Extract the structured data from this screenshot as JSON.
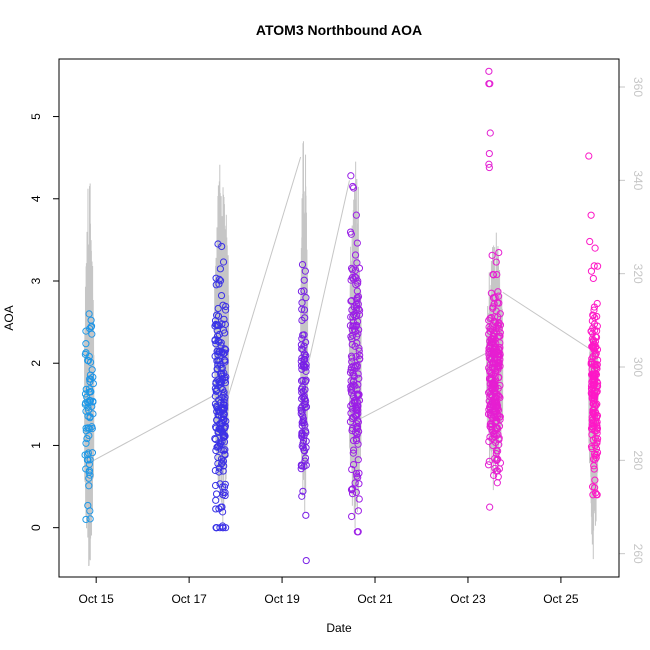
{
  "chart_data": {
    "type": "scatter",
    "title": "ATOM3 Northbound AOA",
    "xlabel": "Date",
    "ylabel": "AOA",
    "x_ticks": [
      {
        "label": "Oct 15",
        "day": 15
      },
      {
        "label": "Oct 17",
        "day": 17
      },
      {
        "label": "Oct 19",
        "day": 19
      },
      {
        "label": "Oct 21",
        "day": 21
      },
      {
        "label": "Oct 23",
        "day": 23
      },
      {
        "label": "Oct 25",
        "day": 25
      }
    ],
    "xlim_days": [
      14.2,
      26.25
    ],
    "y_ticks": [
      0,
      1,
      2,
      3,
      4,
      5
    ],
    "ylim": [
      -0.6,
      5.7
    ],
    "y2_ticks": [
      260,
      280,
      300,
      320,
      340,
      360
    ],
    "y2lim": [
      255,
      366
    ],
    "grid": false,
    "colors": {
      "point_gradient": [
        "#1fa2e6",
        "#1f3de6",
        "#6b1fe6",
        "#b41fe6",
        "#e61fd1",
        "#ff18c6"
      ],
      "secondary_line": "#c6c6c6",
      "axis": "#000000",
      "secondary_axis": "#c6c6c6"
    },
    "secondary_series": {
      "summary": "grey line (right axis) showing high-frequency oscillation during each observation window, joined by straight segments between windows",
      "segments": [
        {
          "day_start": 14.75,
          "day_end": 14.95,
          "min": 257,
          "mid": 290,
          "max": 341
        },
        {
          "day_start": 17.55,
          "day_end": 17.85,
          "min": 265,
          "mid": 303,
          "max": 350
        },
        {
          "day_start": 19.4,
          "day_end": 19.55,
          "min": 268,
          "mid": 302,
          "max": 352
        },
        {
          "day_start": 20.45,
          "day_end": 20.7,
          "min": 265,
          "mid": 293,
          "max": 350
        },
        {
          "day_start": 23.4,
          "day_end": 23.75,
          "min": 272,
          "mid": 300,
          "max": 330
        },
        {
          "day_start": 25.6,
          "day_end": 25.8,
          "min": 258,
          "mid": 295,
          "max": 310
        }
      ],
      "connectors": [
        {
          "from_day": 14.95,
          "from": 280,
          "to_day": 17.55,
          "to": 294
        },
        {
          "from_day": 17.85,
          "from": 294,
          "to_day": 19.4,
          "to": 345
        },
        {
          "from_day": 19.55,
          "from": 300,
          "to_day": 20.45,
          "to": 340
        },
        {
          "from_day": 20.7,
          "from": 289,
          "to_day": 23.4,
          "to": 303
        },
        {
          "from_day": 23.75,
          "from": 316,
          "to_day": 25.6,
          "to": 304
        }
      ]
    },
    "clusters": [
      {
        "center_day": 14.85,
        "spread": 0.09,
        "n": 70,
        "mean": 1.45,
        "sd": 0.55,
        "min": 0.1,
        "max": 2.6,
        "extra": [
          {
            "day": 14.78,
            "aoa": 0.1
          },
          {
            "day": 14.82,
            "aoa": 0.27
          },
          {
            "day": 14.9,
            "aoa": 2.45
          }
        ]
      },
      {
        "center_day": 17.67,
        "spread": 0.12,
        "n": 200,
        "mean": 1.55,
        "sd": 0.65,
        "min": 0.0,
        "max": 3.45,
        "extra": [
          {
            "day": 17.7,
            "aoa": 3.42
          },
          {
            "day": 17.72,
            "aoa": 0.02
          },
          {
            "day": 17.65,
            "aoa": 3.02
          }
        ]
      },
      {
        "center_day": 19.47,
        "spread": 0.06,
        "n": 90,
        "mean": 1.7,
        "sd": 0.65,
        "min": 0.15,
        "max": 3.2,
        "extra": [
          {
            "day": 19.52,
            "aoa": -0.4
          },
          {
            "day": 19.5,
            "aoa": 3.12
          },
          {
            "day": 19.47,
            "aoa": 2.88
          }
        ]
      },
      {
        "center_day": 20.57,
        "spread": 0.1,
        "n": 160,
        "mean": 2.0,
        "sd": 0.9,
        "min": -0.05,
        "max": 4.3,
        "extra": [
          {
            "day": 20.48,
            "aoa": 4.28
          },
          {
            "day": 20.52,
            "aoa": 4.15
          },
          {
            "day": 20.62,
            "aoa": -0.05
          }
        ]
      },
      {
        "center_day": 23.57,
        "spread": 0.13,
        "n": 260,
        "mean": 1.8,
        "sd": 0.55,
        "min": 0.25,
        "max": 3.7,
        "extra": [
          {
            "day": 23.45,
            "aoa": 5.55
          },
          {
            "day": 23.45,
            "aoa": 5.4
          },
          {
            "day": 23.47,
            "aoa": 5.4
          },
          {
            "day": 23.48,
            "aoa": 4.8
          },
          {
            "day": 23.46,
            "aoa": 4.55
          },
          {
            "day": 23.45,
            "aoa": 4.42
          },
          {
            "day": 23.46,
            "aoa": 4.38
          }
        ]
      },
      {
        "center_day": 25.72,
        "spread": 0.07,
        "n": 170,
        "mean": 1.75,
        "sd": 0.6,
        "min": 0.4,
        "max": 3.4,
        "extra": [
          {
            "day": 25.6,
            "aoa": 4.52
          },
          {
            "day": 25.65,
            "aoa": 3.8
          },
          {
            "day": 25.62,
            "aoa": 3.48
          }
        ]
      }
    ]
  }
}
